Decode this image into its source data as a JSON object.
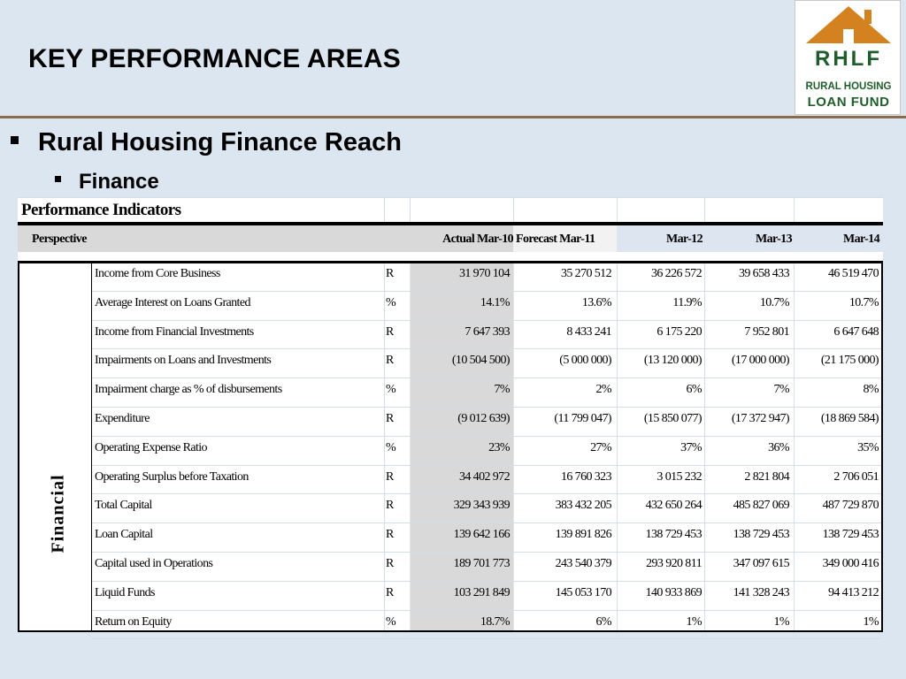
{
  "slide": {
    "title": "KEY PERFORMANCE AREAS",
    "bullet_level1": "Rural Housing Finance Reach",
    "bullet_level2": "Finance"
  },
  "logo": {
    "brand": "RHLF",
    "line1": "RURAL HOUSING",
    "line2": "LOAN FUND",
    "colors": {
      "roof": "#d4821f",
      "text": "#1f5d2a"
    }
  },
  "table": {
    "title": "Performance Indicators",
    "perspective_header": "Perspective",
    "columns": [
      "Actual Mar-10",
      "Forecast Mar-11",
      "Mar-12",
      "Mar-13",
      "Mar-14"
    ],
    "category": "Financial",
    "rows": [
      {
        "label": "Income from Core Business",
        "unit": "R",
        "values": [
          "31 970 104",
          "35 270 512",
          "36 226 572",
          "39 658 433",
          "46 519 470"
        ]
      },
      {
        "label": "Average Interest on Loans Granted",
        "unit": "%",
        "values": [
          "14.1%",
          "13.6%",
          "11.9%",
          "10.7%",
          "10.7%"
        ]
      },
      {
        "label": "Income from Financial Investments",
        "unit": "R",
        "values": [
          "7 647 393",
          "8 433 241",
          "6 175 220",
          "7 952 801",
          "6 647 648"
        ]
      },
      {
        "label": "Impairments on Loans and Investments",
        "unit": "R",
        "values": [
          "(10 504 500)",
          "(5 000 000)",
          "(13 120 000)",
          "(17 000 000)",
          "(21 175 000)"
        ]
      },
      {
        "label": "Impairment charge as % of disbursements",
        "unit": "%",
        "values": [
          "7%",
          "2%",
          "6%",
          "7%",
          "8%"
        ]
      },
      {
        "label": "Expenditure",
        "unit": "R",
        "values": [
          "(9 012 639)",
          "(11 799 047)",
          "(15 850 077)",
          "(17 372 947)",
          "(18 869 584)"
        ]
      },
      {
        "label": "Operating Expense Ratio",
        "unit": "%",
        "values": [
          "23%",
          "27%",
          "37%",
          "36%",
          "35%"
        ]
      },
      {
        "label": "Operating Surplus  before Taxation",
        "unit": "R",
        "values": [
          "34 402 972",
          "16 760 323",
          "3 015 232",
          "2 821 804",
          "2 706 051"
        ]
      },
      {
        "label": "Total Capital",
        "unit": "R",
        "values": [
          "329 343 939",
          "383 432 205",
          "432 650 264",
          "485 827 069",
          "487 729 870"
        ]
      },
      {
        "label": "Loan Capital",
        "unit": "R",
        "values": [
          "139 642 166",
          "139 891 826",
          "138 729 453",
          "138 729 453",
          "138 729 453"
        ]
      },
      {
        "label": "Capital used in Operations",
        "unit": "R",
        "values": [
          "189 701 773",
          "243 540 379",
          "293 920 811",
          "347 097 615",
          "349 000 416"
        ]
      },
      {
        "label": "Liquid Funds",
        "unit": "R",
        "values": [
          "103 291 849",
          "145 053 170",
          "140 933 869",
          "141 328 243",
          "94 413 212"
        ]
      },
      {
        "label": "Return on Equity",
        "unit": "%",
        "values": [
          "18.7%",
          "6%",
          "1%",
          "1%",
          "1%"
        ]
      }
    ]
  }
}
